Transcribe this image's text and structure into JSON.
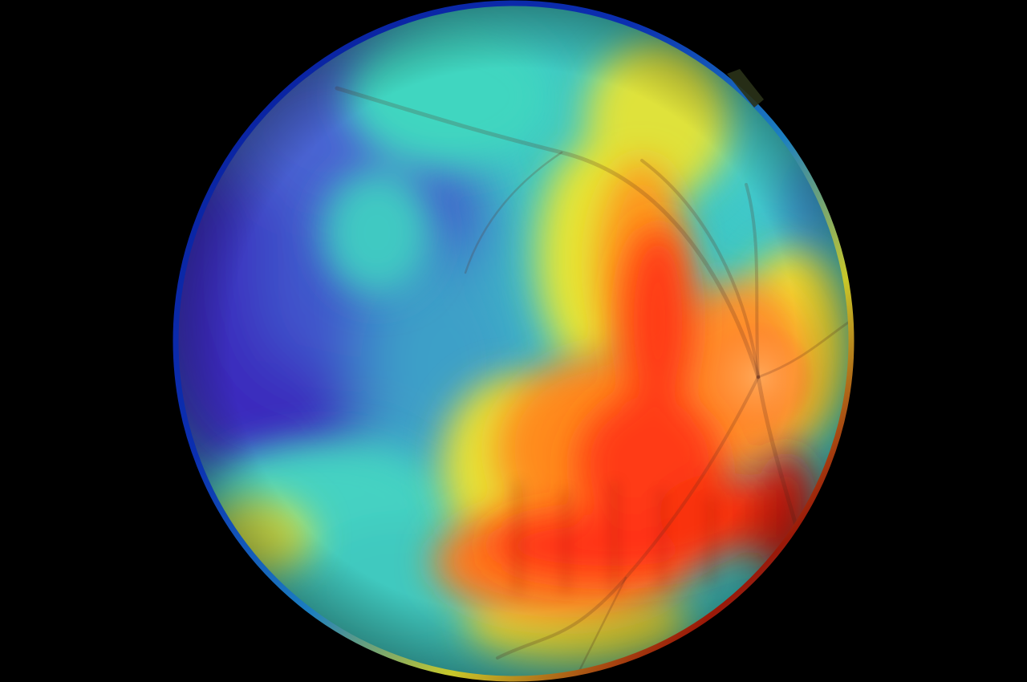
{
  "image": {
    "subject": "fundus-photograph-heatmap-overlay",
    "background_color": "#000000",
    "colormap": [
      "#2a1ca8",
      "#3d57c9",
      "#2fb9c6",
      "#46e0b6",
      "#e8e033",
      "#ff8a1e",
      "#ff3a12",
      "#c80f0a"
    ],
    "overlay_elements": [
      "retina-disc",
      "heatmap-overlay",
      "blood-vessels",
      "optic-disc",
      "rim-highlight",
      "notch-marker"
    ]
  }
}
